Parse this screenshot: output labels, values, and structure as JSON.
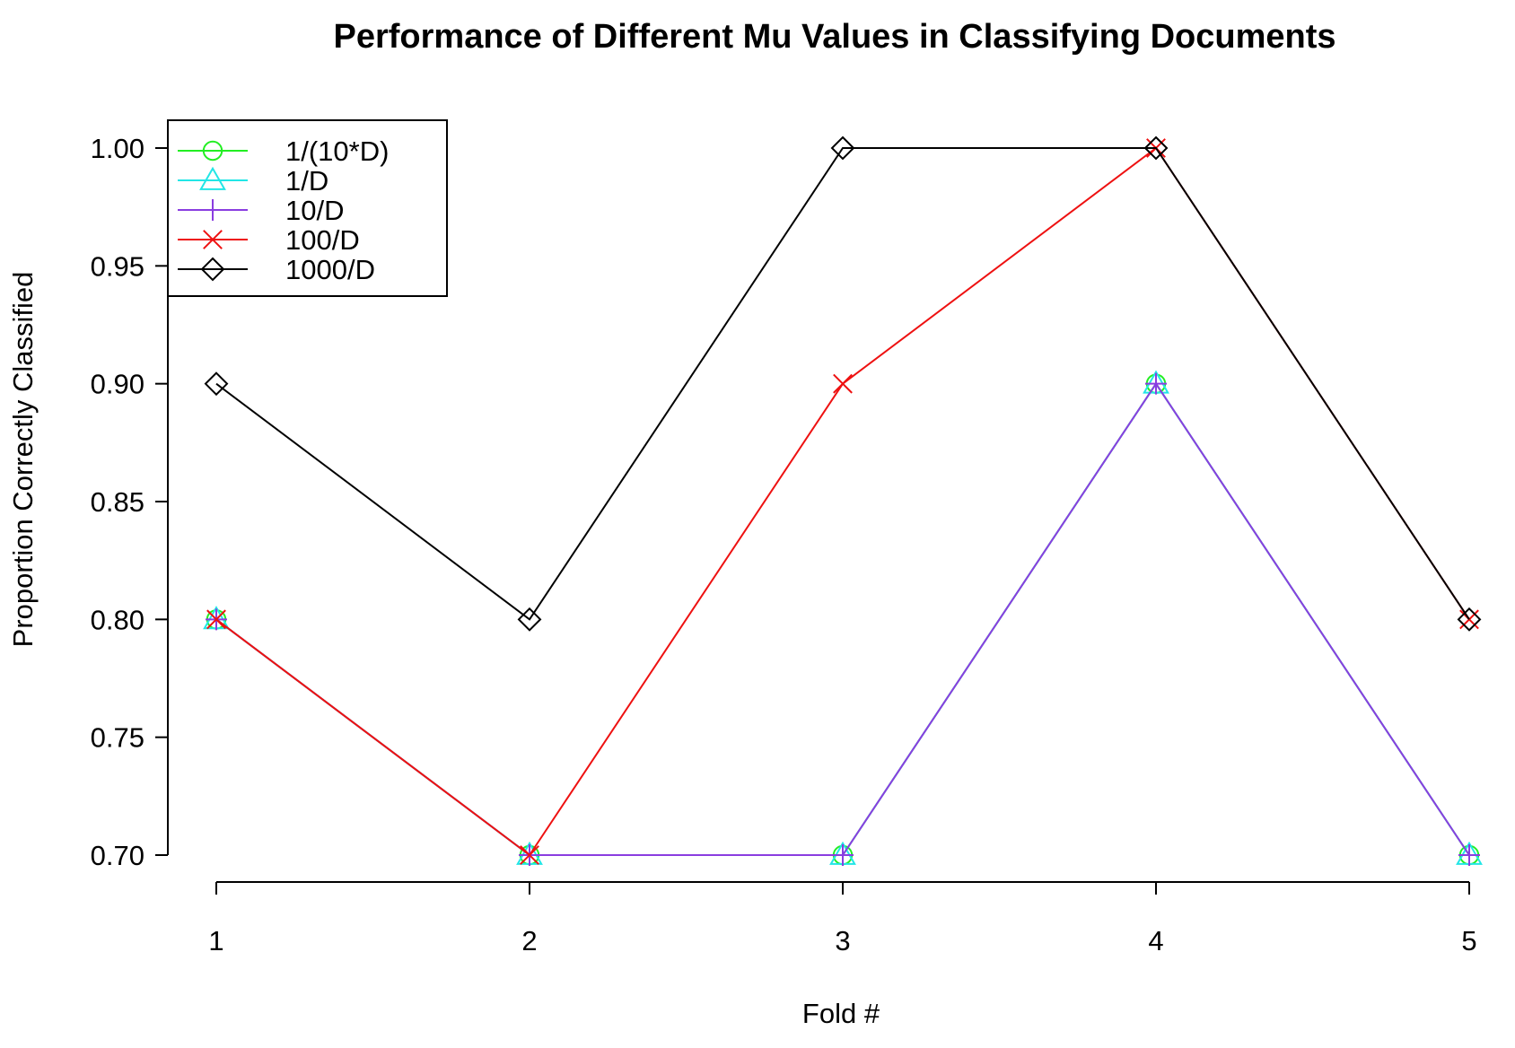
{
  "chart_data": {
    "type": "line",
    "title": "Performance of Different Mu Values in Classifying Documents",
    "xlabel": "Fold #",
    "ylabel": "Proportion Correctly Classified",
    "x": [
      1,
      2,
      3,
      4,
      5
    ],
    "x_tick_labels": [
      "1",
      "2",
      "3",
      "4",
      "5"
    ],
    "ylim": [
      0.7,
      1.0
    ],
    "y_ticks": [
      0.7,
      0.75,
      0.8,
      0.85,
      0.9,
      0.95,
      1.0
    ],
    "y_tick_labels": [
      "0.70",
      "0.75",
      "0.80",
      "0.85",
      "0.90",
      "0.95",
      "1.00"
    ],
    "grid": false,
    "legend_position": "top-left",
    "series": [
      {
        "name": "1/(10*D)",
        "values": [
          0.8,
          0.7,
          0.7,
          0.9,
          0.7
        ],
        "color": "#22ee22",
        "marker": "circle"
      },
      {
        "name": "1/D",
        "values": [
          0.8,
          0.7,
          0.7,
          0.9,
          0.7
        ],
        "color": "#22e6e6",
        "marker": "triangle"
      },
      {
        "name": "10/D",
        "values": [
          0.8,
          0.7,
          0.7,
          0.9,
          0.7
        ],
        "color": "#8a3de0",
        "marker": "plus"
      },
      {
        "name": "100/D",
        "values": [
          0.8,
          0.7,
          0.9,
          1.0,
          0.8
        ],
        "color": "#ee1111",
        "marker": "cross"
      },
      {
        "name": "1000/D",
        "values": [
          0.9,
          0.8,
          1.0,
          1.0,
          0.8
        ],
        "color": "#000000",
        "marker": "diamond"
      }
    ]
  }
}
